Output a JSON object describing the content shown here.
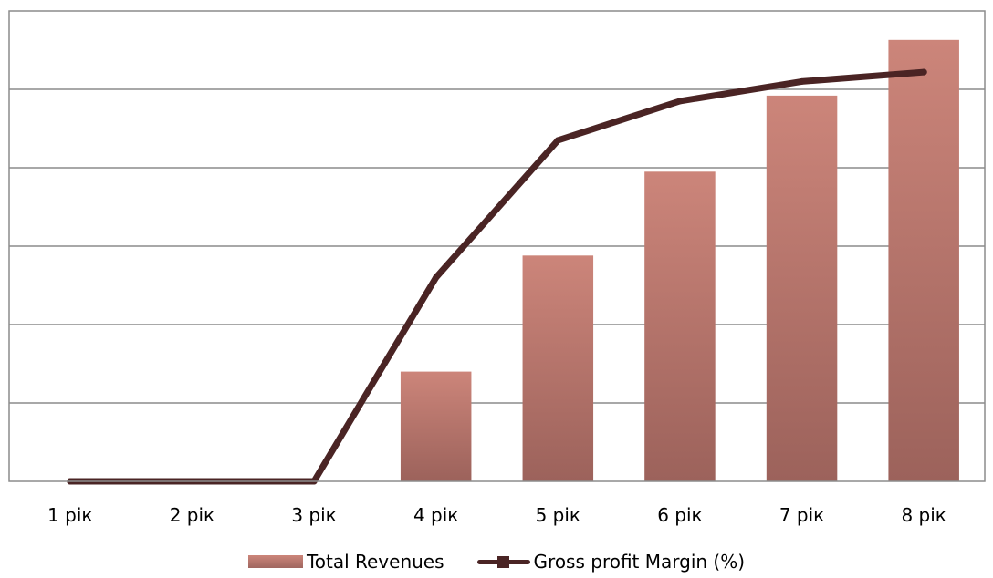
{
  "chart_data": {
    "type": "bar+line",
    "categories": [
      "1 рік",
      "2 рік",
      "3 рік",
      "4 рік",
      "5 рік",
      "6 рік",
      "7 рік",
      "8 рік"
    ],
    "series": [
      {
        "name": "Total Revenues",
        "type": "bar",
        "color": "#c47a70",
        "values": [
          0,
          0,
          0,
          1.4,
          2.88,
          3.95,
          4.92,
          5.63
        ]
      },
      {
        "name": "Gross profit Margin (%)",
        "type": "line",
        "color": "#4a2424",
        "values": [
          0,
          0,
          0,
          2.6,
          4.35,
          4.85,
          5.1,
          5.22
        ]
      }
    ],
    "ylim": [
      0,
      6
    ],
    "yticks_shown": false,
    "grid": true,
    "legend_position": "bottom"
  }
}
